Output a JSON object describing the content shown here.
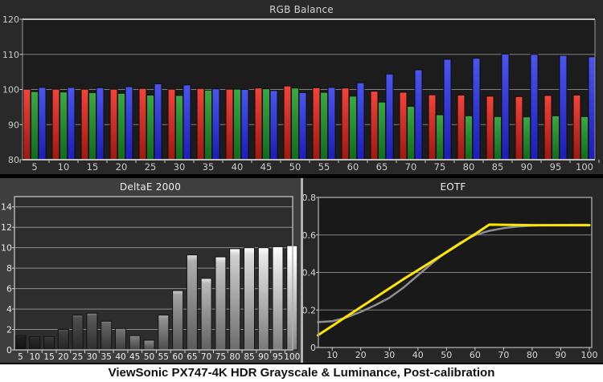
{
  "caption": "ViewSonic PX747-4K HDR Grayscale & Luminance, Post-calibration",
  "chart_data": [
    {
      "type": "bar",
      "title": "RGB Balance",
      "categories": [
        5,
        10,
        15,
        20,
        25,
        30,
        35,
        40,
        45,
        50,
        55,
        60,
        65,
        70,
        75,
        80,
        85,
        90,
        95,
        100
      ],
      "series": [
        {
          "name": "Red",
          "color_top": "#f4433a",
          "color_bottom": "#9d1812",
          "values": [
            100.1,
            100.1,
            100.1,
            100.1,
            100.3,
            100.1,
            100.3,
            100.1,
            100.4,
            101.0,
            100.5,
            100.4,
            99.5,
            99.2,
            98.5,
            98.4,
            98.1,
            98.0,
            98.3,
            98.4
          ]
        },
        {
          "name": "Green",
          "color_top": "#38ab40",
          "color_bottom": "#0e6c1c",
          "values": [
            99.4,
            99.3,
            99.1,
            98.9,
            98.4,
            98.3,
            99.8,
            100.1,
            100.2,
            100.4,
            99.2,
            98.1,
            96.4,
            95.2,
            92.8,
            92.5,
            92.3,
            92.2,
            92.5,
            92.3
          ]
        },
        {
          "name": "Blue",
          "color_top": "#4a55ee",
          "color_bottom": "#1c1cba",
          "values": [
            100.6,
            100.6,
            100.5,
            100.8,
            101.6,
            101.3,
            100.2,
            100.0,
            99.7,
            99.1,
            100.6,
            101.9,
            104.4,
            105.6,
            108.6,
            108.9,
            110.1,
            110.0,
            109.7,
            109.3
          ]
        }
      ],
      "ylim": [
        80,
        120
      ],
      "yticks": [
        80,
        90,
        100,
        110,
        120
      ],
      "xlabel": "",
      "ylabel": "",
      "grid": true,
      "plot_bg": "#1c1c1c"
    },
    {
      "type": "bar",
      "title": "DeltaE 2000",
      "categories": [
        5,
        10,
        15,
        20,
        25,
        30,
        35,
        40,
        45,
        50,
        55,
        60,
        65,
        70,
        75,
        80,
        85,
        90,
        95,
        100
      ],
      "values": [
        1.4,
        1.3,
        1.3,
        2.0,
        3.4,
        3.6,
        2.8,
        2.1,
        1.4,
        0.95,
        3.4,
        5.8,
        9.3,
        7.0,
        9.1,
        9.9,
        10.0,
        10.0,
        10.1,
        10.2
      ],
      "bar_style": "grayscale-matches-stimulus-level",
      "ylim": [
        0,
        15
      ],
      "yticks": [
        0,
        2,
        4,
        6,
        8,
        10,
        12,
        14
      ],
      "grid": true,
      "plot_bg": "#2d2d2d"
    },
    {
      "type": "line",
      "title": "EOTF",
      "x": [
        5,
        10,
        15,
        20,
        25,
        30,
        35,
        40,
        45,
        50,
        55,
        60,
        65,
        70,
        75,
        80,
        85,
        90,
        95,
        100
      ],
      "series": [
        {
          "name": "Reference curve",
          "color": "#8f8f8f",
          "width": 2.5,
          "values": [
            0.135,
            0.14,
            0.16,
            0.19,
            0.225,
            0.265,
            0.32,
            0.385,
            0.45,
            0.51,
            0.56,
            0.6,
            0.622,
            0.636,
            0.645,
            0.65,
            0.652,
            0.653,
            0.654,
            0.654
          ]
        },
        {
          "name": "Measured curve",
          "color": "#ffe600",
          "width": 3,
          "values": [
            0.065,
            0.115,
            0.165,
            0.215,
            0.265,
            0.315,
            0.365,
            0.412,
            0.46,
            0.508,
            0.556,
            0.605,
            0.655,
            0.654,
            0.653,
            0.652,
            0.652,
            0.652,
            0.652,
            0.652
          ]
        }
      ],
      "ylim": [
        0,
        0.8
      ],
      "yticks": [
        0,
        0.2,
        0.4,
        0.6,
        0.8
      ],
      "xticks": [
        10,
        20,
        30,
        40,
        50,
        60,
        70,
        80,
        90,
        100
      ],
      "grid": true,
      "plot_bg": "#191919"
    }
  ]
}
